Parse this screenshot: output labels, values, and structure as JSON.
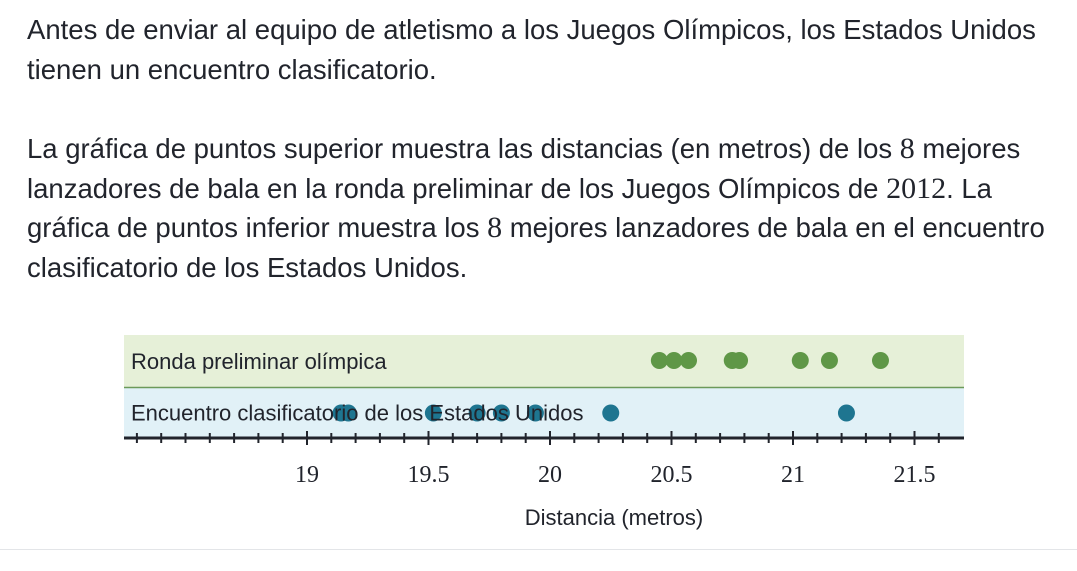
{
  "intro": {
    "paragraph1": "Antes de enviar al equipo de atletismo a los Juegos Olímpicos, los Estados Unidos tienen un encuentro clasificatorio.",
    "p2_a": "La gráfica de puntos superior muestra las distancias (en metros) de los ",
    "p2_n1": "8",
    "p2_b": " mejores lanzadores de bala en la ronda preliminar de los Juegos Olímpicos de ",
    "p2_year": "2012",
    "p2_c": ". La gráfica de puntos inferior muestra los ",
    "p2_n2": "8",
    "p2_d": " mejores lanzadores de bala en el encuentro clasificatorio de los Estados Unidos."
  },
  "chart_data": {
    "type": "scatter",
    "xlabel": "Distancia (metros)",
    "xlim": [
      18.25,
      21.7
    ],
    "ticks": [
      19,
      19.5,
      20,
      20.5,
      21,
      21.5
    ],
    "minor_tick_step": 0.1,
    "series": [
      {
        "name": "Ronda preliminar olímpica",
        "color": "#5f9747",
        "band_color": "#e6f0d8",
        "values": [
          20.45,
          20.51,
          20.57,
          20.75,
          20.78,
          21.03,
          21.15,
          21.36
        ]
      },
      {
        "name": "Encuentro clasificatorio de los Estados Unidos",
        "color": "#1e7590",
        "band_color": "#e1f1f7",
        "values": [
          19.14,
          19.17,
          19.52,
          19.7,
          19.8,
          19.94,
          20.25,
          21.22
        ]
      }
    ]
  }
}
